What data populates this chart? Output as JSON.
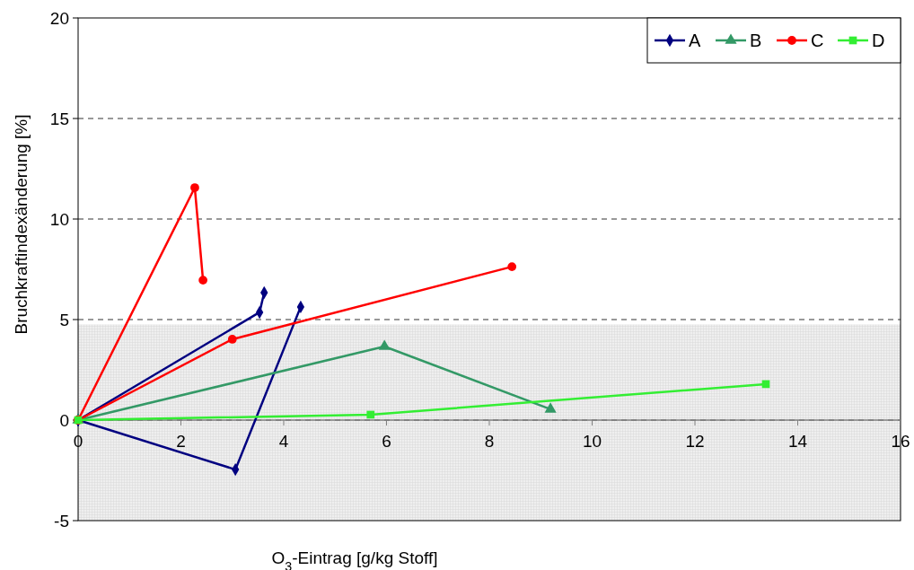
{
  "chart_data": {
    "type": "line",
    "xlabel": "O$_{3}$-Eintrag [g/kg Stoff]",
    "ylabel": "Bruchkraftindexänderung [%]",
    "xlim": [
      0,
      16
    ],
    "xticks": [
      0,
      2,
      4,
      6,
      8,
      10,
      12,
      14,
      16
    ],
    "ylim": [
      -5,
      20
    ],
    "yticks": [
      -5,
      0,
      5,
      10,
      15,
      20
    ],
    "grid": "y",
    "legend": "top right",
    "bands": [
      {
        "axis": "y",
        "from": -5,
        "to": 4.75,
        "color": "#e3e3e3"
      }
    ],
    "series": [
      {
        "name": "A",
        "color": "#000080",
        "marker": "diamond",
        "x": [
          0,
          3.53,
          3.62,
          null,
          0,
          3.06,
          4.33
        ],
        "values": [
          0,
          5.36,
          6.34,
          null,
          0,
          -2.46,
          5.63
        ]
      },
      {
        "name": "B",
        "color": "#339966",
        "marker": "triangle",
        "x": [
          0,
          5.96,
          9.19
        ],
        "values": [
          0,
          3.66,
          0.54
        ]
      },
      {
        "name": "C",
        "color": "#ff0000",
        "marker": "circle",
        "x": [
          0,
          2.27,
          2.43,
          null,
          0,
          3.0,
          8.44
        ],
        "values": [
          0,
          11.56,
          6.96,
          null,
          0,
          4.02,
          7.63
        ]
      },
      {
        "name": "D",
        "color": "#33ee33",
        "marker": "square",
        "x": [
          0,
          5.69,
          13.38
        ],
        "values": [
          0,
          0.27,
          1.79
        ]
      }
    ]
  }
}
